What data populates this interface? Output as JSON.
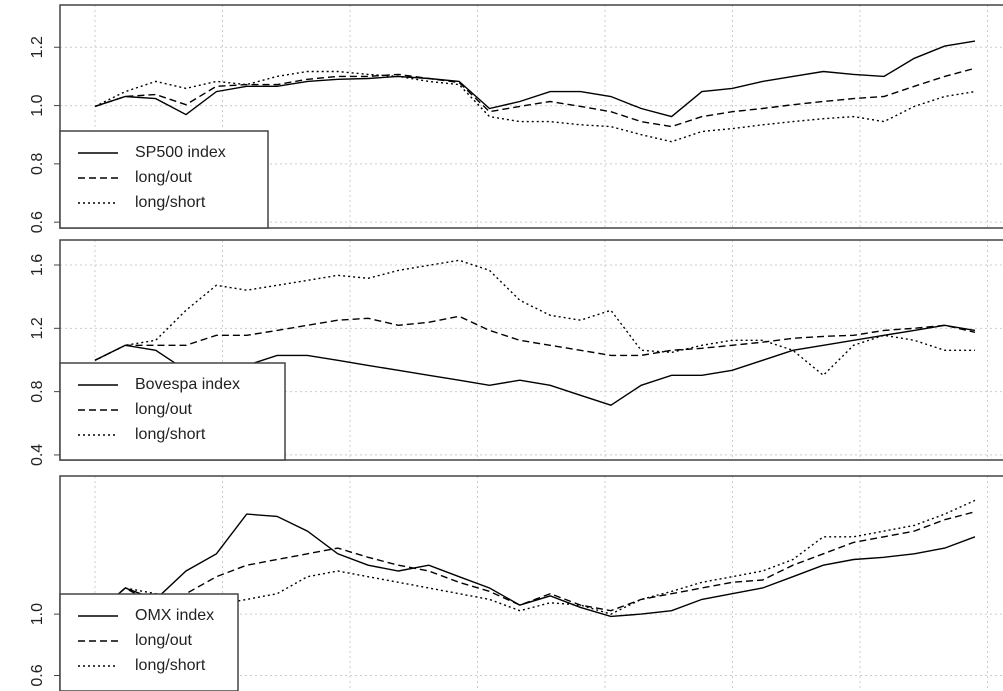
{
  "chart_data": [
    {
      "type": "line",
      "ylim": [
        0.58,
        1.345
      ],
      "yticks": [
        0.6,
        0.8,
        {
          "value": 1,
          "label": "1.0"
        },
        1.2
      ],
      "grid": true,
      "legend": "bottom-left",
      "series": [
        {
          "name": "SP500 index",
          "color": "#000000",
          "linestyle": "solid",
          "values": [
            0.997,
            1.031,
            1.024,
            0.969,
            1.048,
            1.066,
            1.066,
            1.083,
            1.09,
            1.093,
            1.1,
            1.093,
            1.083,
            0.99,
            1.014,
            1.048,
            1.048,
            1.031,
            0.99,
            0.962,
            1.048,
            1.059,
            1.083,
            1.1,
            1.117,
            1.107,
            1.1,
            1.162,
            1.204,
            1.221
          ]
        },
        {
          "name": "long/out",
          "color": "#000000",
          "linestyle": "dashed",
          "values": [
            0.997,
            1.031,
            1.038,
            1.003,
            1.066,
            1.072,
            1.072,
            1.09,
            1.1,
            1.1,
            1.107,
            1.093,
            1.079,
            0.979,
            0.997,
            1.014,
            0.997,
            0.979,
            0.945,
            0.928,
            0.962,
            0.979,
            0.99,
            1.003,
            1.014,
            1.024,
            1.031,
            1.066,
            1.1,
            1.128
          ]
        },
        {
          "name": "long/short",
          "color": "#000000",
          "linestyle": "dotted",
          "values": [
            0.997,
            1.048,
            1.083,
            1.059,
            1.083,
            1.072,
            1.1,
            1.117,
            1.117,
            1.107,
            1.1,
            1.083,
            1.072,
            0.962,
            0.945,
            0.945,
            0.934,
            0.928,
            0.9,
            0.876,
            0.911,
            0.921,
            0.934,
            0.945,
            0.955,
            0.962,
            0.945,
            0.997,
            1.031,
            1.048
          ]
        }
      ]
    },
    {
      "type": "line",
      "ylim": [
        0.368,
        1.758
      ],
      "yticks": [
        0.4,
        0.8,
        1.2,
        1.6
      ],
      "grid": true,
      "legend": "bottom-left",
      "series": [
        {
          "name": "Bovespa index",
          "color": "#000000",
          "linestyle": "solid",
          "values": [
            0.998,
            1.093,
            1.061,
            0.935,
            0.903,
            0.966,
            1.029,
            1.029,
            0.998,
            0.966,
            0.935,
            0.903,
            0.872,
            0.84,
            0.872,
            0.84,
            0.777,
            0.714,
            0.84,
            0.903,
            0.903,
            0.935,
            0.998,
            1.061,
            1.093,
            1.124,
            1.156,
            1.187,
            1.219,
            1.187
          ]
        },
        {
          "name": "long/out",
          "color": "#000000",
          "linestyle": "dashed",
          "values": [
            0.998,
            1.093,
            1.093,
            1.093,
            1.156,
            1.156,
            1.187,
            1.219,
            1.251,
            1.263,
            1.219,
            1.238,
            1.276,
            1.187,
            1.124,
            1.093,
            1.061,
            1.029,
            1.029,
            1.061,
            1.074,
            1.093,
            1.112,
            1.137,
            1.149,
            1.156,
            1.187,
            1.2,
            1.219,
            1.175
          ]
        },
        {
          "name": "long/short",
          "color": "#000000",
          "linestyle": "dotted",
          "values": [
            0.998,
            1.093,
            1.124,
            1.314,
            1.472,
            1.441,
            1.472,
            1.503,
            1.535,
            1.516,
            1.566,
            1.598,
            1.63,
            1.566,
            1.377,
            1.282,
            1.251,
            1.314,
            1.061,
            1.048,
            1.093,
            1.124,
            1.124,
            1.061,
            0.903,
            1.093,
            1.156,
            1.124,
            1.061,
            1.061
          ]
        }
      ]
    },
    {
      "type": "line",
      "ylim": [
        0.31,
        1.9
      ],
      "yticks": [
        0.6,
        {
          "value": 1,
          "label": "1.0"
        }
      ],
      "grid": true,
      "legend": "bottom-left",
      "series": [
        {
          "name": "OMX index",
          "color": "#000000",
          "linestyle": "solid",
          "values": [
            1.0,
            1.17,
            1.096,
            1.281,
            1.393,
            1.652,
            1.637,
            1.541,
            1.393,
            1.319,
            1.281,
            1.319,
            1.244,
            1.17,
            1.059,
            1.119,
            1.044,
            0.985,
            1.0,
            1.022,
            1.096,
            1.133,
            1.17,
            1.244,
            1.319,
            1.356,
            1.37,
            1.393,
            1.43,
            1.504
          ]
        },
        {
          "name": "long/out",
          "color": "#000000",
          "linestyle": "dashed",
          "values": [
            1.0,
            1.17,
            1.059,
            1.133,
            1.244,
            1.319,
            1.356,
            1.393,
            1.43,
            1.37,
            1.319,
            1.281,
            1.207,
            1.148,
            1.059,
            1.133,
            1.059,
            1.022,
            1.096,
            1.133,
            1.17,
            1.207,
            1.222,
            1.319,
            1.393,
            1.467,
            1.504,
            1.541,
            1.615,
            1.667
          ]
        },
        {
          "name": "long/short",
          "color": "#000000",
          "linestyle": "dotted",
          "values": [
            1.0,
            1.17,
            1.133,
            1.096,
            1.059,
            1.096,
            1.133,
            1.244,
            1.281,
            1.244,
            1.207,
            1.17,
            1.133,
            1.096,
            1.022,
            1.074,
            1.059,
            1.0,
            1.096,
            1.148,
            1.207,
            1.244,
            1.281,
            1.356,
            1.504,
            1.504,
            1.541,
            1.578,
            1.652,
            1.741
          ]
        }
      ]
    }
  ]
}
